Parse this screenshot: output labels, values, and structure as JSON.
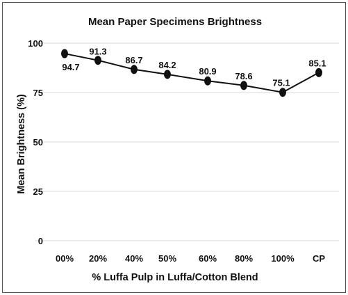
{
  "chart_data": {
    "type": "line",
    "title": "Mean Paper Specimens Brightness",
    "xlabel": "% Luffa Pulp in Luffa/Cotton Blend",
    "ylabel": "Mean Brightness (%)",
    "categories": [
      "00%",
      "20%",
      "40%",
      "50%",
      "60%",
      "80%",
      "100%",
      "CP"
    ],
    "series": [
      {
        "values": [
          94.7,
          91.3,
          86.7,
          84.2,
          80.9,
          78.6,
          75.1,
          85.1
        ]
      }
    ],
    "data_labels": [
      "94.7",
      "91.3",
      "86.7",
      "84.2",
      "80.9",
      "78.6",
      "75.1",
      "85.1"
    ],
    "y_ticks": [
      "0",
      "25",
      "50",
      "75",
      "100"
    ],
    "ylim": [
      0,
      100
    ],
    "grid": true,
    "legend": "none",
    "colors": {
      "line": "#111111",
      "grid": "#d9d9d9",
      "frame": "#555555"
    }
  }
}
